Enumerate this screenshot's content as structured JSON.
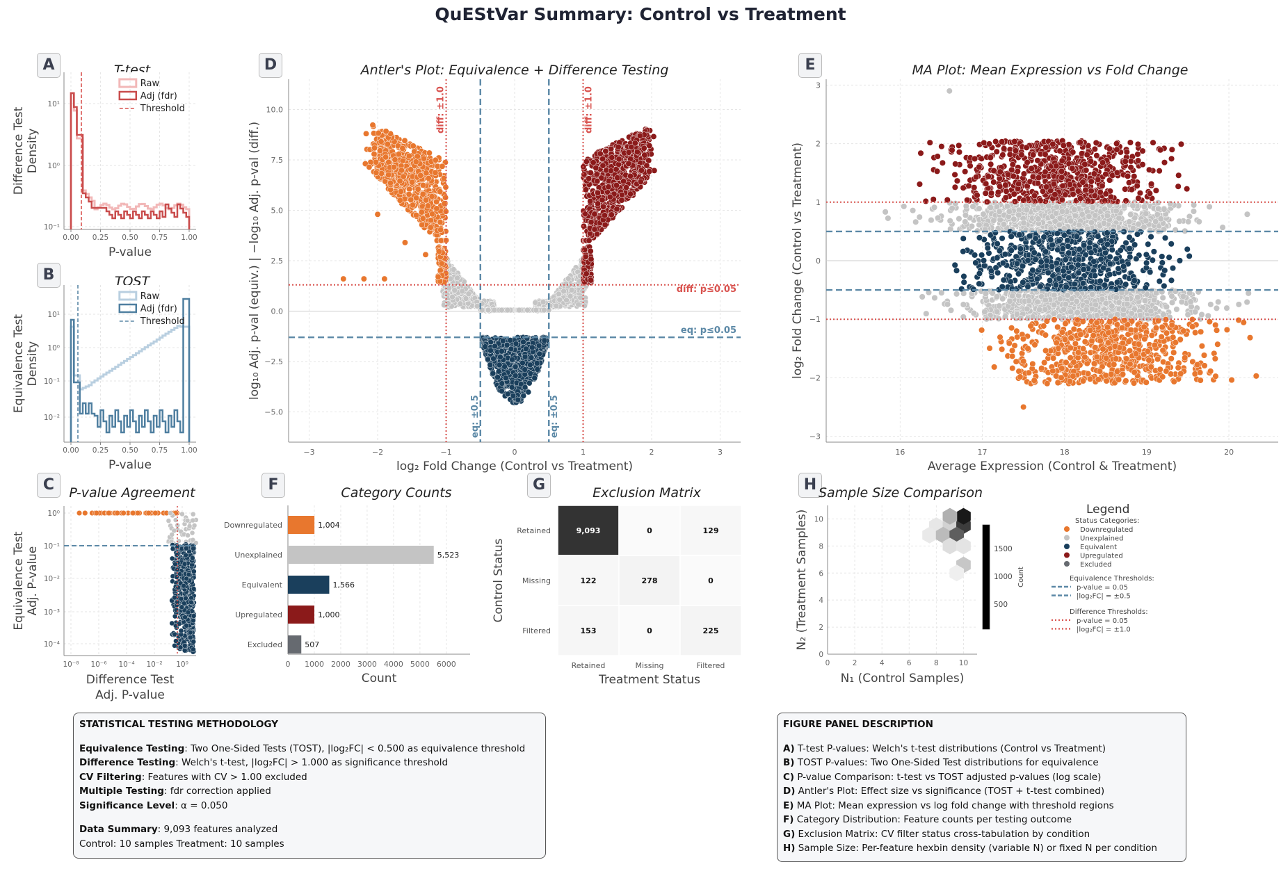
{
  "title": "QuEStVar Summary: Control vs Treatment",
  "colors": {
    "down": "#e8772e",
    "unexplained": "#c4c4c4",
    "equivalent": "#1a3f5c",
    "up": "#8b1a1a",
    "excluded": "#666a70",
    "eq_threshold": "#5b88a6",
    "diff_threshold": "#d9534f",
    "raw_ttest": "#f2b8b8",
    "adj_ttest": "#c94c4c",
    "raw_tost": "#b9cfe0",
    "adj_tost": "#4f7fa0"
  },
  "panels": {
    "A": {
      "letter": "A",
      "title": "T-test",
      "xlabel": "P-value",
      "ylabel": "Difference Test\nDensity",
      "legend": [
        "Raw",
        "Adj (fdr)",
        "Threshold"
      ],
      "xticks": [
        "0.00",
        "0.25",
        "0.50",
        "0.75",
        "1.00"
      ],
      "yticks": [
        "10¹",
        "10⁰",
        "10⁻¹"
      ]
    },
    "B": {
      "letter": "B",
      "title": "TOST",
      "xlabel": "P-value",
      "ylabel": "Equivalence Test\nDensity",
      "legend": [
        "Raw",
        "Adj (fdr)",
        "Threshold"
      ],
      "xticks": [
        "0.00",
        "0.25",
        "0.50",
        "0.75",
        "1.00"
      ],
      "yticks": [
        "10¹",
        "10⁰",
        "10⁻¹",
        "10⁻²"
      ]
    },
    "C": {
      "letter": "C",
      "title": "P-value Agreement",
      "xlabel": "Difference Test\nAdj. P-value",
      "ylabel": "Equivalence Test\nAdj. P-value",
      "xticks": [
        "10⁻⁸",
        "10⁻⁶",
        "10⁻⁴",
        "10⁻²",
        "10⁰"
      ],
      "yticks": [
        "10⁰",
        "10⁻¹",
        "10⁻²",
        "10⁻³",
        "10⁻⁴"
      ]
    },
    "D": {
      "letter": "D",
      "title": "Antler's Plot: Equivalence + Difference Testing",
      "xlabel": "log₂ Fold Change (Control vs Treatment)",
      "ylabel": "log₁₀ Adj. p-val (equiv.) | −log₁₀ Adj. p-val (diff.)",
      "xticks": [
        "−3",
        "−2",
        "−1",
        "0",
        "1",
        "2",
        "3"
      ],
      "yticks": [
        "10.0",
        "7.5",
        "5.0",
        "2.5",
        "0.0",
        "−2.5",
        "−5.0"
      ],
      "ann": {
        "diff_left": "diff: ±1.0",
        "diff_right": "diff: ±1.0",
        "eq_left": "eq: ±0.5",
        "eq_right": "eq: ±0.5",
        "diff_p": "diff: p≤0.05",
        "eq_p": "eq: p≤0.05"
      }
    },
    "E": {
      "letter": "E",
      "title": "MA Plot: Mean Expression vs Fold Change",
      "xlabel": "Average Expression (Control & Treatment)",
      "ylabel": "log₂ Fold Change (Control vs Treatment)",
      "xticks": [
        "16",
        "17",
        "18",
        "19",
        "20"
      ],
      "yticks": [
        "3",
        "2",
        "1",
        "0",
        "−1",
        "−2",
        "−3"
      ]
    },
    "F": {
      "letter": "F",
      "title": "Category Counts",
      "xlabel": "Count",
      "xticks": [
        "0",
        "1000",
        "2000",
        "3000",
        "4000",
        "5000",
        "6000"
      ]
    },
    "G": {
      "letter": "G",
      "title": "Exclusion Matrix",
      "xlabel": "Treatment Status",
      "ylabel": "Control Status"
    },
    "H": {
      "letter": "H",
      "title": "Sample Size Comparison",
      "xlabel": "N₁ (Control Samples)",
      "ylabel": "N₂ (Treatment Samples)",
      "xticks": [
        "0",
        "2",
        "4",
        "6",
        "8",
        "10"
      ],
      "yticks": [
        "10",
        "8",
        "6",
        "4",
        "2",
        "0"
      ],
      "cbar_label": "Count",
      "cbar_ticks": [
        "1500",
        "1000",
        "500"
      ]
    }
  },
  "chart_data": [
    {
      "panel": "F",
      "type": "bar",
      "orientation": "horizontal",
      "categories": [
        "Downregulated",
        "Unexplained",
        "Equivalent",
        "Upregulated",
        "Excluded"
      ],
      "values": [
        1004,
        5523,
        1566,
        1000,
        507
      ],
      "labels": [
        "1,004",
        "5,523",
        "1,566",
        "1,000",
        "507"
      ],
      "xlim": [
        0,
        6900
      ]
    },
    {
      "panel": "G",
      "type": "heatmap",
      "rows": [
        "Retained",
        "Missing",
        "Filtered"
      ],
      "cols": [
        "Retained",
        "Missing",
        "Filtered"
      ],
      "values": [
        [
          9093,
          0,
          129
        ],
        [
          122,
          278,
          0
        ],
        [
          153,
          0,
          225
        ]
      ],
      "labels": [
        [
          "9,093",
          "0",
          "129"
        ],
        [
          "122",
          "278",
          "0"
        ],
        [
          "153",
          "0",
          "225"
        ]
      ]
    },
    {
      "panel": "D",
      "type": "scatter",
      "xlim": [
        -3.3,
        3.3
      ],
      "ylim": [
        -6.5,
        11.5
      ],
      "thresholds": {
        "eq_fc": 0.5,
        "diff_fc": 1.0,
        "diff_p_y": 1.3,
        "eq_p_y": -1.3
      }
    },
    {
      "panel": "E",
      "type": "scatter",
      "xlim": [
        15.1,
        20.6
      ],
      "ylim": [
        -3.1,
        3.1
      ],
      "thresholds": {
        "eq_fc": 0.5,
        "diff_fc": 1.0
      }
    },
    {
      "panel": "H",
      "type": "heatmap",
      "subtype": "hexbin",
      "cells": [
        {
          "x": 8,
          "y": 9.5,
          "count": 120
        },
        {
          "x": 9,
          "y": 9.5,
          "count": 300
        },
        {
          "x": 10,
          "y": 9.5,
          "count": 1600
        },
        {
          "x": 7.5,
          "y": 8.8,
          "count": 100
        },
        {
          "x": 8.5,
          "y": 8.8,
          "count": 500
        },
        {
          "x": 9.5,
          "y": 8.8,
          "count": 1300
        },
        {
          "x": 10,
          "y": 10.2,
          "count": 1900
        },
        {
          "x": 9,
          "y": 10.2,
          "count": 600
        },
        {
          "x": 9,
          "y": 8.0,
          "count": 200
        },
        {
          "x": 10,
          "y": 8.0,
          "count": 150
        },
        {
          "x": 10,
          "y": 6.6,
          "count": 400
        },
        {
          "x": 9.5,
          "y": 6.0,
          "count": 50
        }
      ],
      "xlim": [
        0,
        11
      ],
      "ylim": [
        0,
        11
      ]
    }
  ],
  "legend_h": {
    "title": "Legend",
    "status_header": "Status Categories:",
    "status": [
      "Downregulated",
      "Unexplained",
      "Equivalent",
      "Upregulated",
      "Excluded"
    ],
    "eq_header": "Equivalence Thresholds:",
    "eq_items": [
      "p-value = 0.05",
      "|log₂FC| = ±0.5"
    ],
    "diff_header": "Difference Thresholds:",
    "diff_items": [
      "p-value = 0.05",
      "|log₂FC| = ±1.0"
    ]
  },
  "methodology": {
    "heading": "STATISTICAL TESTING METHODOLOGY",
    "lines": [
      {
        "b": "Equivalence Testing",
        "t": ": Two One-Sided Tests (TOST), |log₂FC| < 0.500 as equivalence threshold"
      },
      {
        "b": "Difference Testing",
        "t": ": Welch's t-test, |log₂FC| > 1.000 as significance threshold"
      },
      {
        "b": "CV Filtering",
        "t": ": Features with CV  > 1.00 excluded"
      },
      {
        "b": "Multiple Testing",
        "t": ": fdr correction applied"
      },
      {
        "b": "Significance Level",
        "t": ": α = 0.050"
      }
    ],
    "summary_b": "Data Summary",
    "summary_t": ": 9,093 features analyzed",
    "summary_2": "Control: 10 samples   Treatment: 10 samples"
  },
  "description": {
    "heading": "FIGURE PANEL DESCRIPTION",
    "lines": [
      {
        "b": "A)",
        "t": " T-test P-values: Welch's t-test distributions (Control vs Treatment)"
      },
      {
        "b": "B)",
        "t": " TOST P-values: Two One-Sided Test distributions for equivalence"
      },
      {
        "b": "C)",
        "t": " P-value Comparison: t-test vs TOST adjusted p-values (log scale)"
      },
      {
        "b": "D)",
        "t": " Antler's Plot: Effect size vs significance (TOST + t-test combined)"
      },
      {
        "b": "E)",
        "t": " MA Plot: Mean expression vs log fold change with threshold regions"
      },
      {
        "b": "F)",
        "t": " Category Distribution: Feature counts per testing outcome"
      },
      {
        "b": "G)",
        "t": " Exclusion Matrix: CV filter status cross-tabulation by condition"
      },
      {
        "b": "H)",
        "t": " Sample Size: Per-feature hexbin density (variable N) or fixed N per condition"
      }
    ]
  }
}
